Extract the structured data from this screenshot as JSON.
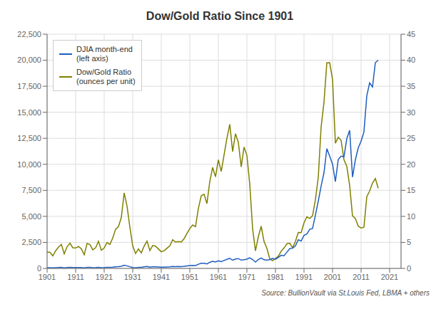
{
  "chart_data": {
    "type": "line",
    "title": "Dow/Gold Ratio Since 1901",
    "annotations": [
      "Source: BullionVault via St.Louis Fed, LBMA + others"
    ],
    "x": [
      1901,
      1902,
      1903,
      1904,
      1905,
      1906,
      1907,
      1908,
      1909,
      1910,
      1911,
      1912,
      1913,
      1914,
      1915,
      1916,
      1917,
      1918,
      1919,
      1920,
      1921,
      1922,
      1923,
      1924,
      1925,
      1926,
      1927,
      1928,
      1929,
      1930,
      1931,
      1932,
      1933,
      1934,
      1935,
      1936,
      1937,
      1938,
      1939,
      1940,
      1941,
      1942,
      1943,
      1944,
      1945,
      1946,
      1947,
      1948,
      1949,
      1950,
      1951,
      1952,
      1953,
      1954,
      1955,
      1956,
      1957,
      1958,
      1959,
      1960,
      1961,
      1962,
      1963,
      1964,
      1965,
      1966,
      1967,
      1968,
      1969,
      1970,
      1971,
      1972,
      1973,
      1974,
      1975,
      1976,
      1977,
      1978,
      1979,
      1980,
      1981,
      1982,
      1983,
      1984,
      1985,
      1986,
      1987,
      1988,
      1989,
      1990,
      1991,
      1992,
      1993,
      1994,
      1995,
      1996,
      1997,
      1998,
      1999,
      2000,
      2001,
      2002,
      2003,
      2004,
      2005,
      2006,
      2007,
      2008,
      2009,
      2010,
      2011,
      2012,
      2013,
      2014,
      2015,
      2016,
      2017
    ],
    "xlim": [
      1901,
      2025
    ],
    "xticks": [
      1901,
      1911,
      1921,
      1931,
      1941,
      1951,
      1961,
      1971,
      1981,
      1991,
      2001,
      2011,
      2021
    ],
    "ylim": [
      0,
      22500
    ],
    "yticks": [
      0,
      {
        "value": 2500,
        "label": "2,500"
      },
      {
        "value": 5000,
        "label": "5,000"
      },
      {
        "value": 7500,
        "label": "7,500"
      },
      {
        "value": 10000,
        "label": "10,000"
      },
      {
        "value": 12500,
        "label": "12,500"
      },
      {
        "value": 15000,
        "label": "15,000"
      },
      {
        "value": 17500,
        "label": "17,500"
      },
      {
        "value": 20000,
        "label": "20,000"
      },
      {
        "value": 22500,
        "label": "22,500"
      }
    ],
    "y2lim": [
      0,
      45
    ],
    "y2ticks": [
      0,
      5,
      10,
      15,
      20,
      25,
      30,
      35,
      40,
      45
    ],
    "grid": true,
    "legend": "upper left",
    "series": [
      {
        "name": "DJIA month-end\n(left axis)",
        "color": "#1F5EBF",
        "axis": "y",
        "values": [
          64,
          64,
          50,
          70,
          85,
          95,
          58,
          86,
          100,
          82,
          81,
          87,
          78,
          54,
          99,
          95,
          74,
          82,
          108,
          72,
          81,
          103,
          95,
          121,
          156,
          166,
          202,
          300,
          248,
          164,
          89,
          59,
          99,
          104,
          150,
          184,
          120,
          154,
          150,
          131,
          112,
          119,
          136,
          152,
          193,
          177,
          181,
          177,
          200,
          235,
          269,
          292,
          281,
          404,
          488,
          499,
          436,
          584,
          679,
          616,
          731,
          652,
          763,
          875,
          969,
          786,
          906,
          944,
          800,
          839,
          890,
          1020,
          851,
          616,
          852,
          1005,
          831,
          805,
          839,
          964,
          875,
          1047,
          1259,
          1212,
          1547,
          1896,
          1939,
          2169,
          2753,
          2634,
          3169,
          3301,
          3754,
          3834,
          5117,
          6448,
          7908,
          9181,
          11497,
          10788,
          10022,
          8342,
          10454,
          10783,
          10718,
          12463,
          13265,
          8776,
          10428,
          11578,
          12218,
          13104,
          16577,
          17823,
          17425,
          19763,
          20000
        ]
      },
      {
        "name": "Dow/Gold Ratio\n(ounces per unit)",
        "color": "#808000",
        "axis": "y2",
        "values": [
          3.0963,
          3.0963,
          2.419,
          3.3866,
          4.1122,
          4.596,
          2.806,
          4.1606,
          4.8379,
          3.9671,
          3.9187,
          4.209,
          3.7736,
          2.6125,
          4.7896,
          4.596,
          3.5801,
          3.9671,
          5.225,
          3.4833,
          3.9187,
          4.9831,
          4.596,
          5.8539,
          7.5472,
          8.031,
          9.7726,
          14.5138,
          11.9981,
          7.9342,
          4.3058,
          2.8544,
          3.76,
          2.9714,
          4.2857,
          5.2571,
          3.4286,
          4.4,
          4.2857,
          3.7429,
          3.2,
          3.4,
          3.8857,
          4.3429,
          5.5143,
          5.0571,
          5.1714,
          5.0571,
          5.7143,
          6.7143,
          7.6857,
          8.3429,
          8.0286,
          11.5429,
          13.9429,
          14.2571,
          12.4571,
          16.6857,
          19.4,
          17.6,
          20.8857,
          18.6286,
          21.8,
          25,
          27.6857,
          22.4571,
          25.8857,
          24.2051,
          19.5122,
          23.3056,
          21.7073,
          16.1905,
          7.5982,
          3.3661,
          6.0857,
          8.1048,
          5.19375,
          3.8702,
          1.844,
          1.5039,
          1.9022,
          2.3371,
          3.3045,
          3.9223,
          4.7309,
          4.8491,
          3.9897,
          5.189,
          6.9171,
          6.8773,
          8.7541,
          9.9129,
          9.601,
          10.1161,
          13.2222,
          17.4743,
          27.1753,
          31.8785,
          39.5086,
          39.5165,
          36.3116,
          24.0403,
          25.1904,
          24.6187,
          20.8928,
          19.5959,
          15.9244,
          10.099,
          9.5846,
          8.1478,
          7.7624,
          7.9083,
          13.7912,
          14.8649,
          16.4077,
          17.2603,
          15.3846
        ]
      }
    ]
  }
}
